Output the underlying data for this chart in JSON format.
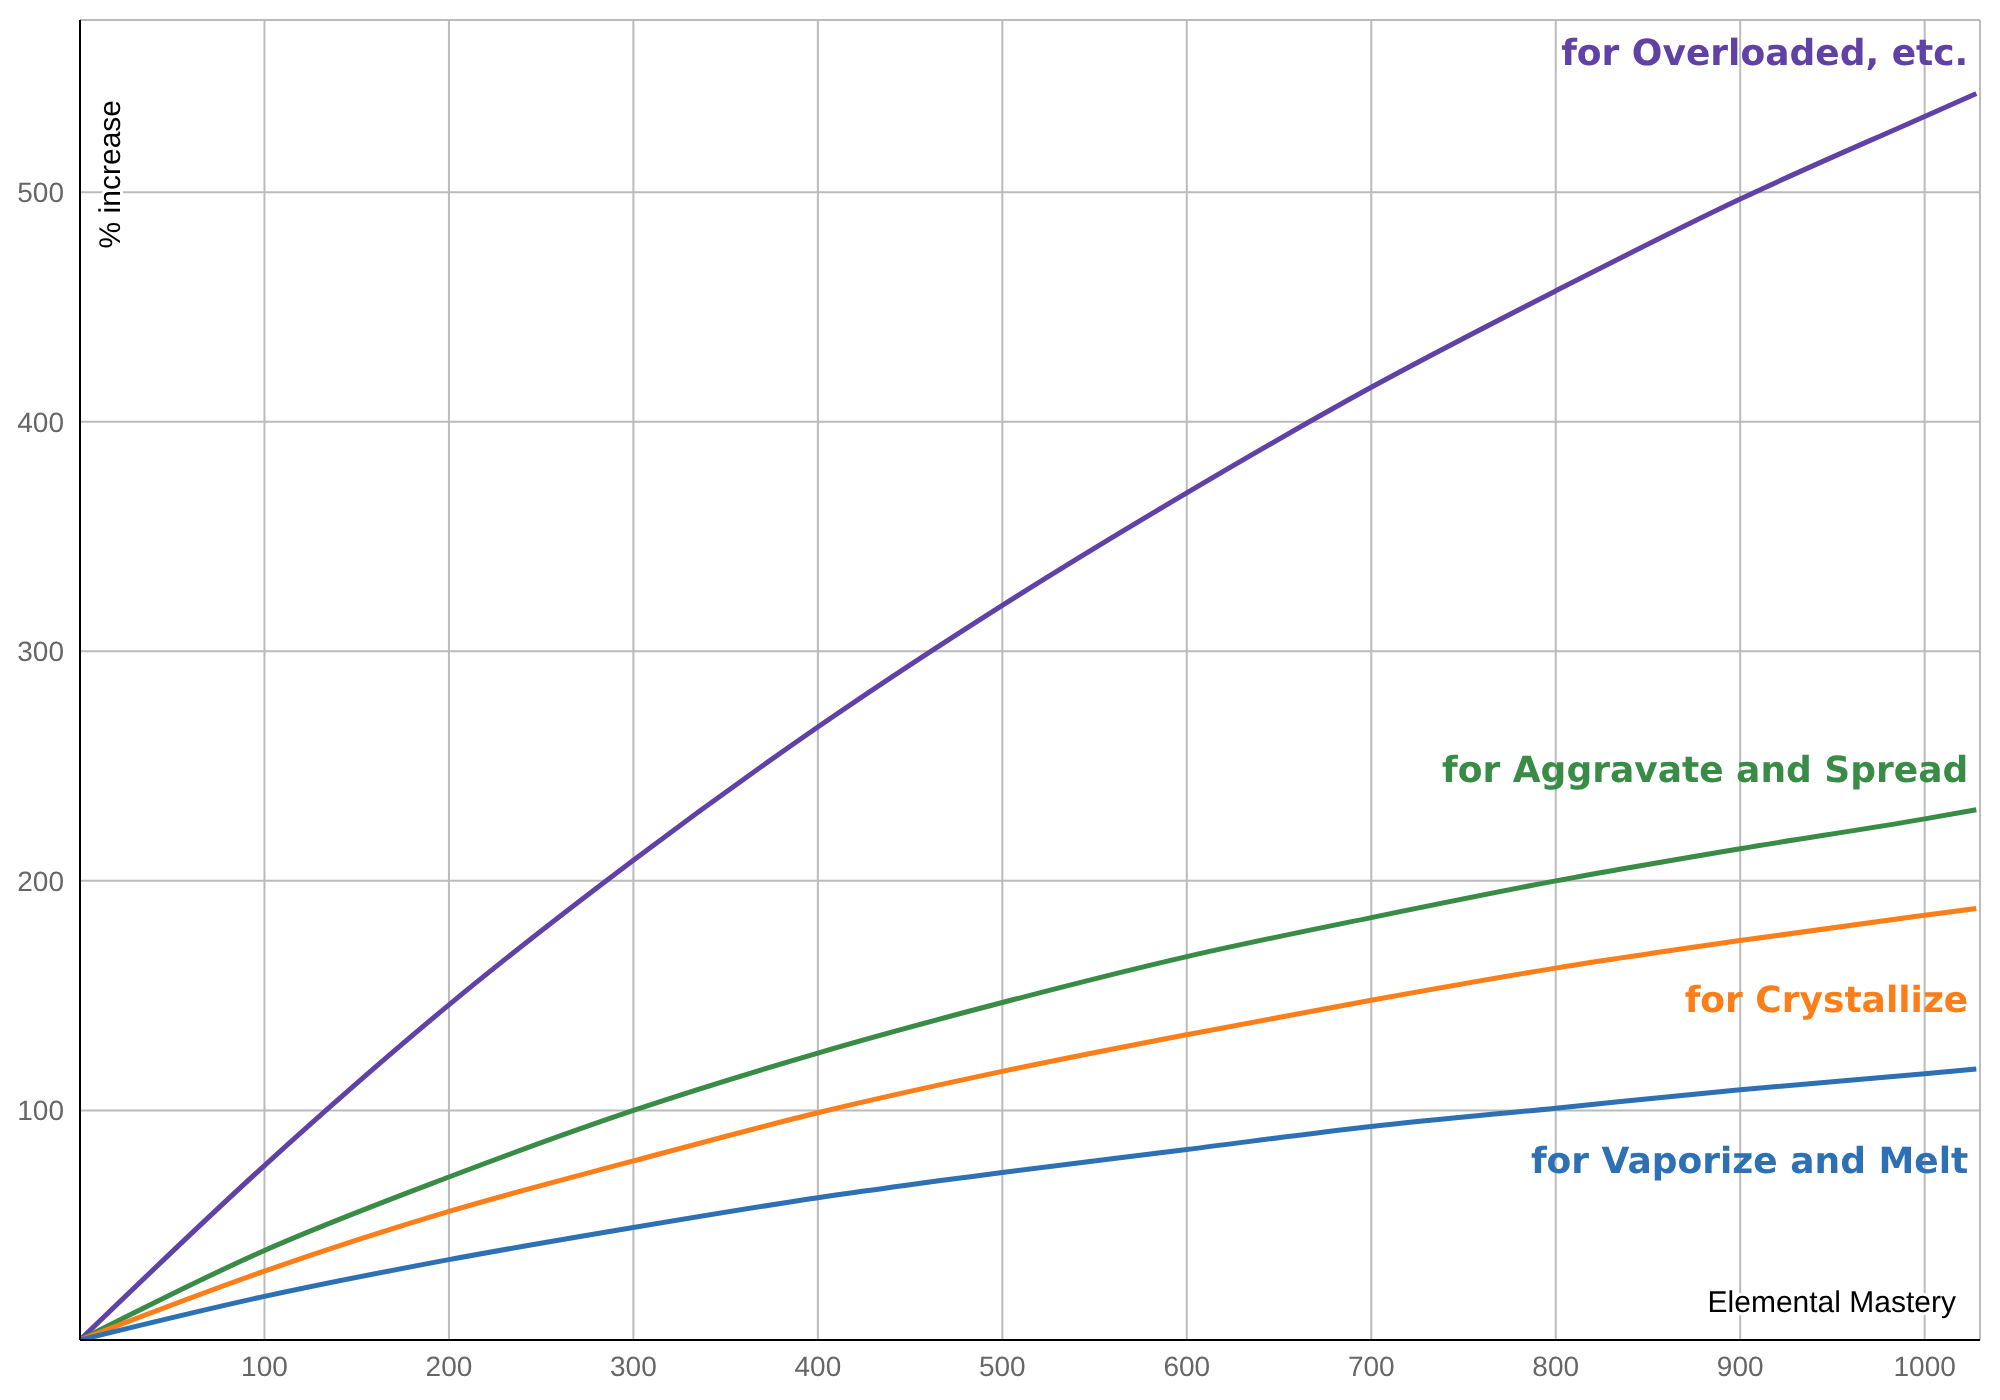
{
  "chart_data": {
    "type": "line",
    "xlabel": "Elemental Mastery",
    "ylabel": "% increase",
    "x": [
      0,
      100,
      200,
      300,
      400,
      500,
      600,
      700,
      800,
      900,
      1000,
      1028
    ],
    "series": [
      {
        "name": "for Overloaded, etc.",
        "color": "#6042a6",
        "values": [
          0,
          76,
          146,
          209,
          267,
          320,
          369,
          415,
          457,
          497,
          533,
          543
        ]
      },
      {
        "name": "for Aggravate and Spread",
        "color": "#388c46",
        "values": [
          0,
          39,
          71,
          100,
          125,
          147,
          167,
          184,
          200,
          214,
          227,
          231
        ]
      },
      {
        "name": "for Crystallize",
        "color": "#fa7e19",
        "values": [
          0,
          30,
          56,
          78,
          99,
          117,
          133,
          148,
          162,
          174,
          185,
          188
        ]
      },
      {
        "name": "for Vaporize and Melt",
        "color": "#2d70b3",
        "values": [
          0,
          19,
          35,
          49,
          62,
          73,
          83,
          93,
          101,
          109,
          116,
          118
        ]
      }
    ],
    "xlim": [
      0,
      1030
    ],
    "ylim": [
      0,
      575
    ],
    "xticks": [
      100,
      200,
      300,
      400,
      500,
      600,
      700,
      800,
      900,
      1000
    ],
    "yticks": [
      100,
      200,
      300,
      400,
      500
    ],
    "grid": true,
    "legend": false,
    "marker": "none",
    "line_style": "solid"
  }
}
